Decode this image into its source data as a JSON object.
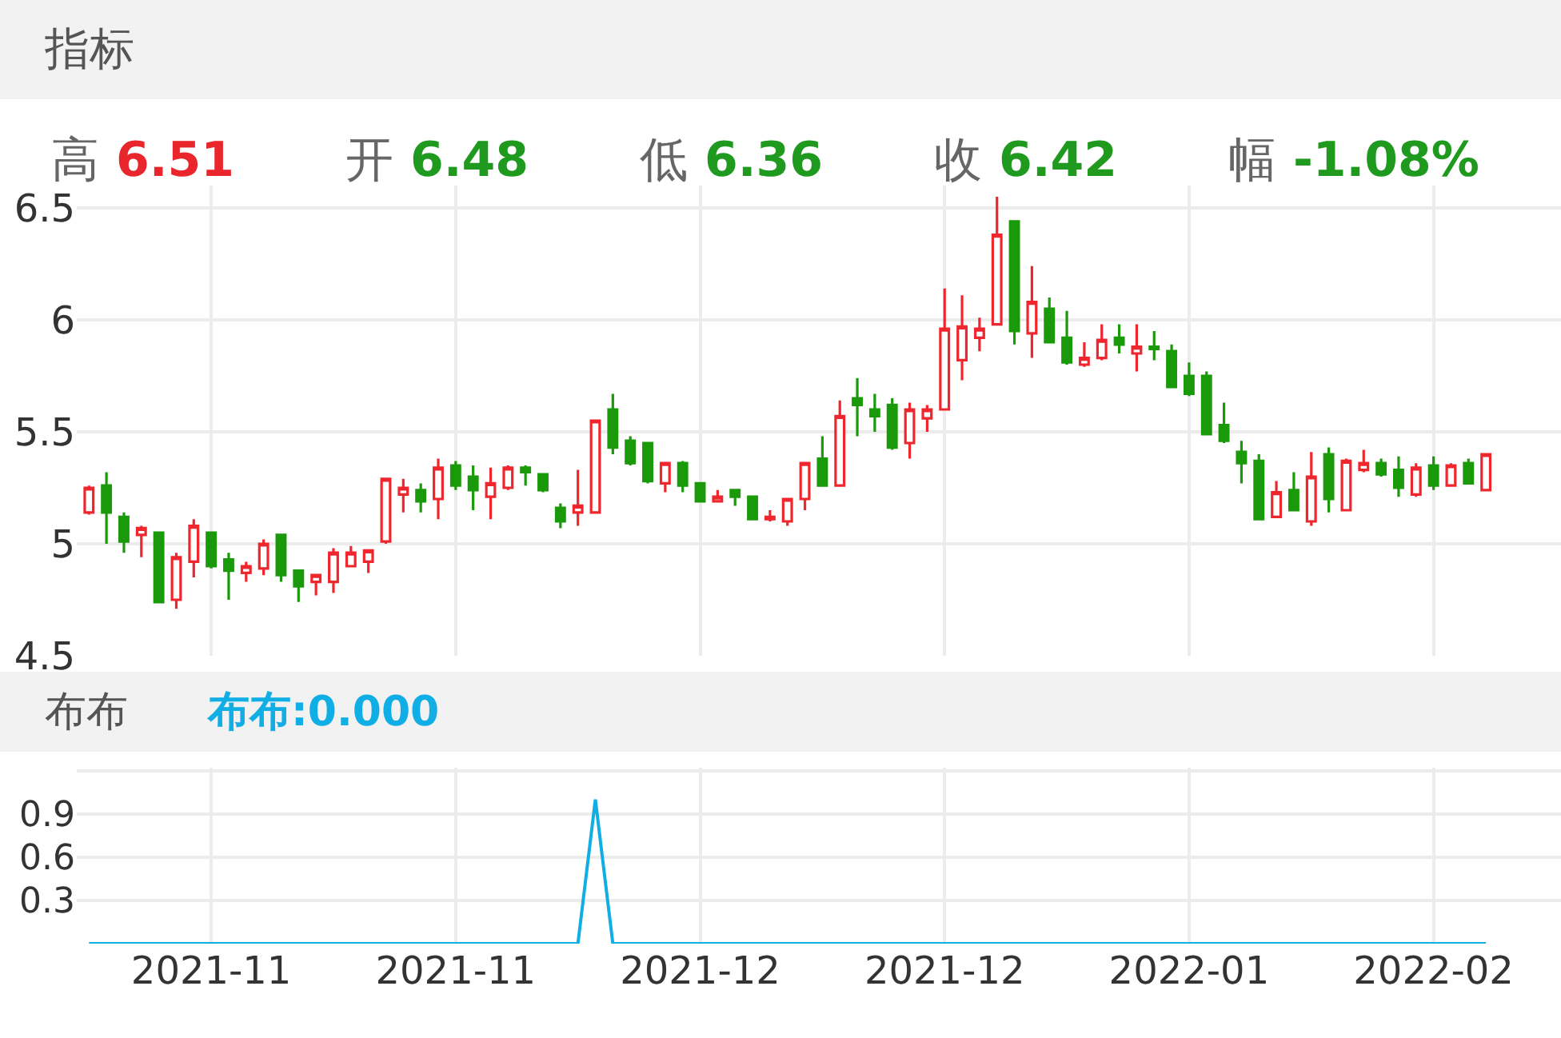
{
  "chart_data": [
    {
      "type": "candlestick",
      "title": "指标",
      "annotations": [
        "高 6.51",
        "开 6.48",
        "低 6.36",
        "收 6.42",
        "幅 -1.08%"
      ],
      "categories": [
        null,
        null,
        null,
        null,
        null,
        null,
        null,
        "2021-11",
        null,
        null,
        null,
        null,
        null,
        null,
        null,
        null,
        null,
        null,
        null,
        null,
        null,
        "2021-11",
        null,
        null,
        null,
        null,
        null,
        null,
        null,
        null,
        null,
        null,
        null,
        null,
        null,
        "2021-12",
        null,
        null,
        null,
        null,
        null,
        null,
        null,
        null,
        null,
        null,
        null,
        null,
        null,
        "2021-12",
        null,
        null,
        null,
        null,
        null,
        null,
        null,
        null,
        null,
        null,
        null,
        null,
        null,
        "2022-01",
        null,
        null,
        null,
        null,
        null,
        null,
        null,
        null,
        null,
        null,
        null,
        null,
        null,
        "2022-02",
        null,
        null,
        null
      ],
      "ohlc": [
        [
          5.14,
          5.26,
          5.13,
          5.25
        ],
        [
          5.26,
          5.32,
          5.0,
          5.14
        ],
        [
          5.12,
          5.14,
          4.96,
          5.01
        ],
        [
          5.04,
          5.08,
          4.94,
          5.07
        ],
        [
          5.05,
          5.05,
          4.74,
          4.74
        ],
        [
          4.75,
          4.96,
          4.71,
          4.94
        ],
        [
          4.92,
          5.11,
          4.85,
          5.08
        ],
        [
          5.05,
          5.05,
          4.89,
          4.9
        ],
        [
          4.93,
          4.96,
          4.75,
          4.88
        ],
        [
          4.87,
          4.92,
          4.83,
          4.9
        ],
        [
          4.89,
          5.02,
          4.86,
          5.0
        ],
        [
          5.04,
          5.04,
          4.83,
          4.86
        ],
        [
          4.88,
          4.88,
          4.74,
          4.81
        ],
        [
          4.83,
          4.86,
          4.77,
          4.86
        ],
        [
          4.83,
          4.98,
          4.78,
          4.96
        ],
        [
          4.9,
          4.99,
          4.9,
          4.96
        ],
        [
          4.92,
          4.97,
          4.87,
          4.97
        ],
        [
          5.01,
          5.29,
          5.0,
          5.29
        ],
        [
          5.22,
          5.29,
          5.14,
          5.25
        ],
        [
          5.24,
          5.27,
          5.14,
          5.19
        ],
        [
          5.2,
          5.38,
          5.11,
          5.34
        ],
        [
          5.35,
          5.37,
          5.24,
          5.26
        ],
        [
          5.3,
          5.35,
          5.15,
          5.24
        ],
        [
          5.21,
          5.34,
          5.11,
          5.27
        ],
        [
          5.25,
          5.35,
          5.24,
          5.34
        ],
        [
          5.34,
          5.35,
          5.26,
          5.32
        ],
        [
          5.31,
          5.31,
          5.23,
          5.24
        ],
        [
          5.16,
          5.18,
          5.07,
          5.1
        ],
        [
          5.14,
          5.33,
          5.08,
          5.17
        ],
        [
          5.14,
          5.55,
          5.14,
          5.55
        ],
        [
          5.6,
          5.67,
          5.4,
          5.43
        ],
        [
          5.46,
          5.48,
          5.35,
          5.36
        ],
        [
          5.45,
          5.45,
          5.27,
          5.28
        ],
        [
          5.27,
          5.36,
          5.23,
          5.36
        ],
        [
          5.36,
          5.37,
          5.23,
          5.26
        ],
        [
          5.27,
          5.27,
          5.19,
          5.19
        ],
        [
          5.19,
          5.24,
          5.19,
          5.21
        ],
        [
          5.24,
          5.24,
          5.17,
          5.21
        ],
        [
          5.21,
          5.21,
          5.11,
          5.11
        ],
        [
          5.11,
          5.15,
          5.1,
          5.12
        ],
        [
          5.1,
          5.2,
          5.08,
          5.2
        ],
        [
          5.2,
          5.36,
          5.15,
          5.36
        ],
        [
          5.38,
          5.48,
          5.26,
          5.26
        ],
        [
          5.26,
          5.64,
          5.26,
          5.57
        ],
        [
          5.65,
          5.74,
          5.48,
          5.62
        ],
        [
          5.6,
          5.67,
          5.5,
          5.57
        ],
        [
          5.62,
          5.65,
          5.42,
          5.43
        ],
        [
          5.45,
          5.63,
          5.38,
          5.6
        ],
        [
          5.56,
          5.62,
          5.5,
          5.6
        ],
        [
          5.6,
          6.14,
          5.6,
          5.96
        ],
        [
          5.82,
          6.11,
          5.73,
          5.97
        ],
        [
          5.92,
          6.01,
          5.86,
          5.96
        ],
        [
          5.98,
          6.55,
          5.98,
          6.38
        ],
        [
          6.44,
          6.44,
          5.89,
          5.95
        ],
        [
          5.94,
          6.24,
          5.83,
          6.08
        ],
        [
          6.05,
          6.1,
          5.9,
          5.9
        ],
        [
          5.92,
          6.04,
          5.8,
          5.81
        ],
        [
          5.8,
          5.9,
          5.79,
          5.83
        ],
        [
          5.83,
          5.98,
          5.82,
          5.91
        ],
        [
          5.92,
          5.98,
          5.85,
          5.89
        ],
        [
          5.85,
          5.98,
          5.77,
          5.88
        ],
        [
          5.88,
          5.95,
          5.82,
          5.87
        ],
        [
          5.86,
          5.89,
          5.7,
          5.7
        ],
        [
          5.75,
          5.81,
          5.66,
          5.67
        ],
        [
          5.75,
          5.77,
          5.49,
          5.49
        ],
        [
          5.53,
          5.63,
          5.45,
          5.46
        ],
        [
          5.41,
          5.46,
          5.27,
          5.36
        ],
        [
          5.37,
          5.4,
          5.11,
          5.11
        ],
        [
          5.12,
          5.28,
          5.12,
          5.23
        ],
        [
          5.24,
          5.32,
          5.15,
          5.15
        ],
        [
          5.1,
          5.41,
          5.08,
          5.3
        ],
        [
          5.4,
          5.43,
          5.14,
          5.2
        ],
        [
          5.15,
          5.38,
          5.15,
          5.37
        ],
        [
          5.33,
          5.42,
          5.32,
          5.36
        ],
        [
          5.36,
          5.38,
          5.3,
          5.31
        ],
        [
          5.33,
          5.39,
          5.21,
          5.25
        ],
        [
          5.22,
          5.36,
          5.21,
          5.34
        ],
        [
          5.35,
          5.39,
          5.24,
          5.26
        ],
        [
          5.26,
          5.36,
          5.26,
          5.35
        ],
        [
          5.36,
          5.38,
          5.27,
          5.27
        ],
        [
          5.24,
          5.4,
          5.24,
          5.4
        ]
      ],
      "colors": [
        "#f0262e",
        "#1a9a0a",
        "#1a9a0a",
        "#f0262e",
        "#1a9a0a",
        "#f0262e",
        "#f0262e",
        "#1a9a0a",
        "#1a9a0a",
        "#f0262e",
        "#f0262e",
        "#1a9a0a",
        "#1a9a0a",
        "#f0262e",
        "#f0262e",
        "#f0262e",
        "#f0262e",
        "#f0262e",
        "#f0262e",
        "#1a9a0a",
        "#f0262e",
        "#1a9a0a",
        "#1a9a0a",
        "#f0262e",
        "#f0262e",
        "#1a9a0a",
        "#1a9a0a",
        "#1a9a0a",
        "#f0262e",
        "#f0262e",
        "#1a9a0a",
        "#1a9a0a",
        "#1a9a0a",
        "#f0262e",
        "#1a9a0a",
        "#1a9a0a",
        "#f0262e",
        "#1a9a0a",
        "#1a9a0a",
        "#f0262e",
        "#f0262e",
        "#f0262e",
        "#1a9a0a",
        "#f0262e",
        "#1a9a0a",
        "#1a9a0a",
        "#1a9a0a",
        "#f0262e",
        "#f0262e",
        "#f0262e",
        "#f0262e",
        "#f0262e",
        "#f0262e",
        "#1a9a0a",
        "#f0262e",
        "#1a9a0a",
        "#1a9a0a",
        "#f0262e",
        "#f0262e",
        "#1a9a0a",
        "#f0262e",
        "#1a9a0a",
        "#1a9a0a",
        "#1a9a0a",
        "#1a9a0a",
        "#1a9a0a",
        "#1a9a0a",
        "#1a9a0a",
        "#f0262e",
        "#1a9a0a",
        "#f0262e",
        "#1a9a0a",
        "#f0262e",
        "#f0262e",
        "#1a9a0a",
        "#1a9a0a",
        "#f0262e",
        "#1a9a0a",
        "#f0262e",
        "#1a9a0a",
        "#f0262e"
      ],
      "ylim": [
        4.5,
        6.6
      ],
      "yticks": [
        4.5,
        5,
        5.5,
        6,
        6.5
      ],
      "grid": true,
      "tick_labels": "y"
    },
    {
      "type": "line",
      "title": "布布",
      "annotations": [
        "布布:0.000"
      ],
      "categories": [
        null,
        null,
        null,
        null,
        null,
        null,
        null,
        "2021-11",
        null,
        null,
        null,
        null,
        null,
        null,
        null,
        null,
        null,
        null,
        null,
        null,
        null,
        "2021-11",
        null,
        null,
        null,
        null,
        null,
        null,
        null,
        null,
        null,
        null,
        null,
        null,
        null,
        "2021-12",
        null,
        null,
        null,
        null,
        null,
        null,
        null,
        null,
        null,
        null,
        null,
        null,
        null,
        "2021-12",
        null,
        null,
        null,
        null,
        null,
        null,
        null,
        null,
        null,
        null,
        null,
        null,
        null,
        "2022-01",
        null,
        null,
        null,
        null,
        null,
        null,
        null,
        null,
        null,
        null,
        null,
        null,
        null,
        "2022-02",
        null,
        null,
        null
      ],
      "series": [
        {
          "color": "#11aee6",
          "values": [
            0,
            0,
            0,
            0,
            0,
            0,
            0,
            0,
            0,
            0,
            0,
            0,
            0,
            0,
            0,
            0,
            0,
            0,
            0,
            0,
            0,
            0,
            0,
            0,
            0,
            0,
            0,
            0,
            0,
            1.0,
            0,
            0,
            0,
            0,
            0,
            0,
            0,
            0,
            0,
            0,
            0,
            0,
            0,
            0,
            0,
            0,
            0,
            0,
            0,
            0,
            0,
            0,
            0,
            0,
            0,
            0,
            0,
            0,
            0,
            0,
            0,
            0,
            0,
            0,
            0,
            0,
            0,
            0,
            0,
            0,
            0,
            0,
            0,
            0,
            0,
            0,
            0,
            0,
            0,
            0,
            0
          ]
        }
      ],
      "ylim": [
        0,
        1.22
      ],
      "yticks": [
        0.3,
        0.6,
        0.9,
        {
          "value": 1.2,
          "label": null
        }
      ],
      "grid": true
    }
  ]
}
